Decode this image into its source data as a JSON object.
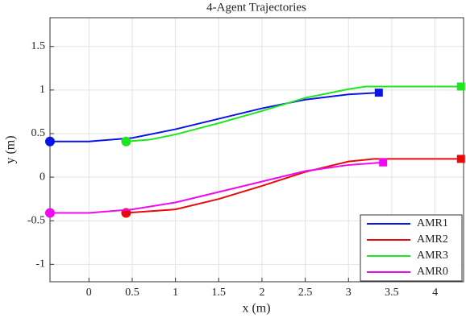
{
  "chart_data": {
    "type": "line",
    "title": "4-Agent Trajectories",
    "x_label": "x (m)",
    "y_label": "y (m)",
    "xlim": [
      -0.45,
      4.33
    ],
    "ylim": [
      -1.2,
      1.83
    ],
    "xticks": [
      0,
      0.5,
      1,
      1.5,
      2,
      2.5,
      3,
      3.5,
      4
    ],
    "yticks": [
      -1,
      -0.5,
      0,
      0.5,
      1,
      1.5
    ],
    "grid": true,
    "legend": "lower right",
    "start_marker": "circle",
    "end_marker": "square",
    "series": [
      {
        "name": "AMR1",
        "color": "#0a14e6",
        "x": [
          -0.45,
          0,
          0.5,
          1,
          1.5,
          2,
          2.5,
          3,
          3.35
        ],
        "values": [
          0.41,
          0.41,
          0.45,
          0.55,
          0.67,
          0.79,
          0.89,
          0.95,
          0.97
        ]
      },
      {
        "name": "AMR2",
        "color": "#e60a0a",
        "x": [
          0.43,
          1,
          1.5,
          2,
          2.5,
          3,
          3.3,
          4.3
        ],
        "values": [
          -0.41,
          -0.37,
          -0.25,
          -0.1,
          0.06,
          0.18,
          0.21,
          0.21
        ]
      },
      {
        "name": "AMR3",
        "color": "#1ee61e",
        "x": [
          0.43,
          0.7,
          1,
          1.5,
          2,
          2.5,
          3,
          3.2,
          4.3
        ],
        "values": [
          0.41,
          0.43,
          0.49,
          0.62,
          0.76,
          0.91,
          1.01,
          1.04,
          1.04
        ]
      },
      {
        "name": "AMR0",
        "color": "#f00af0",
        "x": [
          -0.45,
          0,
          0.5,
          1,
          1.5,
          2,
          2.5,
          3,
          3.4
        ],
        "values": [
          -0.41,
          -0.41,
          -0.37,
          -0.29,
          -0.17,
          -0.05,
          0.07,
          0.14,
          0.17
        ]
      }
    ]
  }
}
